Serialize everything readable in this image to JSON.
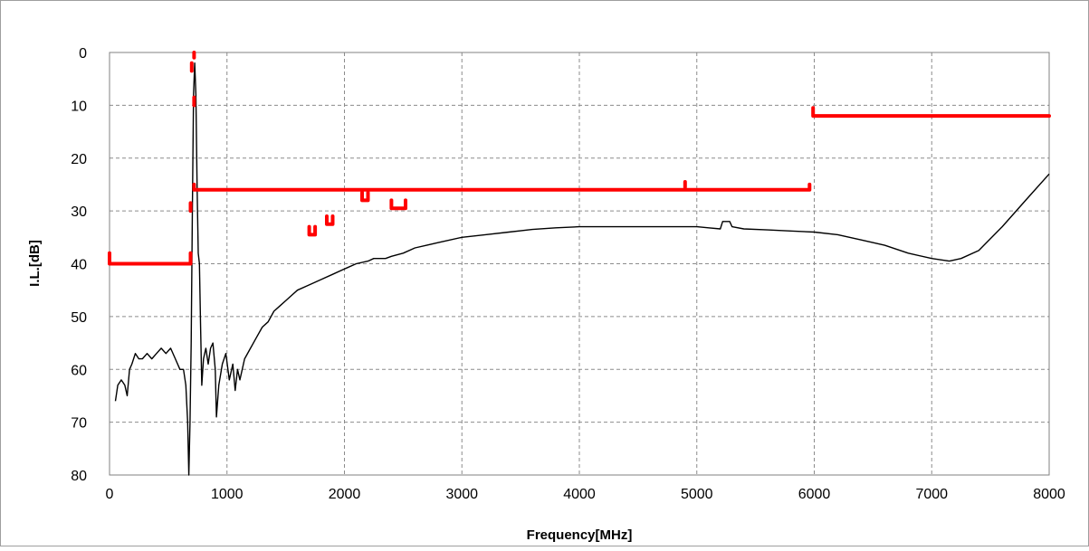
{
  "chart_data": {
    "type": "line",
    "title": "",
    "xlabel": "Frequency[MHz]",
    "ylabel": "I.L.[dB]",
    "xlim": [
      0,
      8000
    ],
    "ylim": [
      0,
      80
    ],
    "y_axis_inverted": true,
    "x_ticks": [
      0,
      1000,
      2000,
      3000,
      4000,
      5000,
      6000,
      7000,
      8000
    ],
    "y_ticks": [
      0,
      10,
      20,
      30,
      40,
      50,
      60,
      70,
      80
    ],
    "x_tick_labels": [
      "0",
      "1000",
      "2000",
      "3000",
      "4000",
      "5000",
      "6000",
      "7000",
      "8000"
    ],
    "y_tick_labels": [
      "0",
      "10",
      "20",
      "30",
      "40",
      "50",
      "60",
      "70",
      "80"
    ],
    "grid": true,
    "grid_style": "dashed",
    "legend": "none",
    "series": [
      {
        "color": "#000000",
        "points": [
          [
            50,
            66
          ],
          [
            70,
            63
          ],
          [
            100,
            62
          ],
          [
            130,
            63
          ],
          [
            150,
            65
          ],
          [
            170,
            60
          ],
          [
            190,
            59
          ],
          [
            220,
            57
          ],
          [
            250,
            58
          ],
          [
            280,
            58
          ],
          [
            320,
            57
          ],
          [
            360,
            58
          ],
          [
            400,
            57
          ],
          [
            440,
            56
          ],
          [
            480,
            57
          ],
          [
            520,
            56
          ],
          [
            560,
            58
          ],
          [
            600,
            60
          ],
          [
            630,
            60
          ],
          [
            650,
            63
          ],
          [
            665,
            70
          ],
          [
            675,
            80
          ],
          [
            685,
            70
          ],
          [
            695,
            55
          ],
          [
            705,
            30
          ],
          [
            715,
            8
          ],
          [
            725,
            2
          ],
          [
            735,
            8
          ],
          [
            745,
            25
          ],
          [
            755,
            38
          ],
          [
            765,
            40
          ],
          [
            775,
            52
          ],
          [
            785,
            63
          ],
          [
            800,
            58
          ],
          [
            820,
            56
          ],
          [
            840,
            59
          ],
          [
            860,
            56
          ],
          [
            880,
            55
          ],
          [
            900,
            60
          ],
          [
            910,
            69
          ],
          [
            930,
            63
          ],
          [
            960,
            59
          ],
          [
            990,
            57
          ],
          [
            1020,
            62
          ],
          [
            1050,
            59
          ],
          [
            1070,
            64
          ],
          [
            1090,
            60
          ],
          [
            1110,
            62
          ],
          [
            1150,
            58
          ],
          [
            1200,
            56
          ],
          [
            1250,
            54
          ],
          [
            1300,
            52
          ],
          [
            1350,
            51
          ],
          [
            1400,
            49
          ],
          [
            1450,
            48
          ],
          [
            1500,
            47
          ],
          [
            1550,
            46
          ],
          [
            1600,
            45
          ],
          [
            1700,
            44
          ],
          [
            1800,
            43
          ],
          [
            1900,
            42
          ],
          [
            2000,
            41
          ],
          [
            2100,
            40
          ],
          [
            2200,
            39.5
          ],
          [
            2250,
            39
          ],
          [
            2300,
            39
          ],
          [
            2350,
            39
          ],
          [
            2400,
            38.6
          ],
          [
            2500,
            38
          ],
          [
            2600,
            37
          ],
          [
            2700,
            36.5
          ],
          [
            2800,
            36
          ],
          [
            3000,
            35
          ],
          [
            3200,
            34.5
          ],
          [
            3400,
            34
          ],
          [
            3600,
            33.5
          ],
          [
            3800,
            33.2
          ],
          [
            4000,
            33
          ],
          [
            4200,
            33
          ],
          [
            4400,
            33
          ],
          [
            4600,
            33
          ],
          [
            4800,
            33
          ],
          [
            5000,
            33
          ],
          [
            5100,
            33.2
          ],
          [
            5200,
            33.4
          ],
          [
            5220,
            32
          ],
          [
            5280,
            32
          ],
          [
            5300,
            33
          ],
          [
            5400,
            33.4
          ],
          [
            5600,
            33.6
          ],
          [
            5800,
            33.8
          ],
          [
            6000,
            34
          ],
          [
            6200,
            34.5
          ],
          [
            6400,
            35.5
          ],
          [
            6600,
            36.5
          ],
          [
            6800,
            38
          ],
          [
            7000,
            39
          ],
          [
            7150,
            39.5
          ],
          [
            7250,
            39
          ],
          [
            7400,
            37.5
          ],
          [
            7600,
            33
          ],
          [
            7800,
            28
          ],
          [
            8000,
            23
          ]
        ]
      },
      {
        "color": "#ff0000",
        "segments": [
          [
            [
              0,
              38
            ],
            [
              0,
              40
            ],
            [
              690,
              40
            ],
            [
              690,
              38
            ]
          ],
          [
            [
              700,
              2
            ],
            [
              700,
              3.5
            ]
          ],
          [
            [
              720,
              0
            ],
            [
              720,
              1
            ]
          ],
          [
            [
              720,
              8.5
            ],
            [
              720,
              10
            ]
          ],
          [
            [
              690,
              28.5
            ],
            [
              690,
              30
            ]
          ],
          [
            [
              720,
              25
            ],
            [
              720,
              26
            ],
            [
              5960,
              26
            ],
            [
              5960,
              25
            ]
          ],
          [
            [
              4900,
              24.5
            ],
            [
              4900,
              25.5
            ]
          ],
          [
            [
              5990,
              10.5
            ],
            [
              5990,
              12
            ],
            [
              8000,
              12
            ]
          ],
          [
            [
              1700,
              33
            ],
            [
              1700,
              34.5
            ],
            [
              1750,
              34.5
            ],
            [
              1750,
              33
            ]
          ],
          [
            [
              1850,
              31
            ],
            [
              1850,
              32.5
            ],
            [
              1900,
              32.5
            ],
            [
              1900,
              31
            ]
          ],
          [
            [
              2150,
              26.5
            ],
            [
              2150,
              28
            ],
            [
              2200,
              28
            ],
            [
              2200,
              26.5
            ]
          ],
          [
            [
              2400,
              28
            ],
            [
              2400,
              29.5
            ],
            [
              2520,
              29.5
            ],
            [
              2520,
              28
            ]
          ]
        ]
      }
    ]
  }
}
